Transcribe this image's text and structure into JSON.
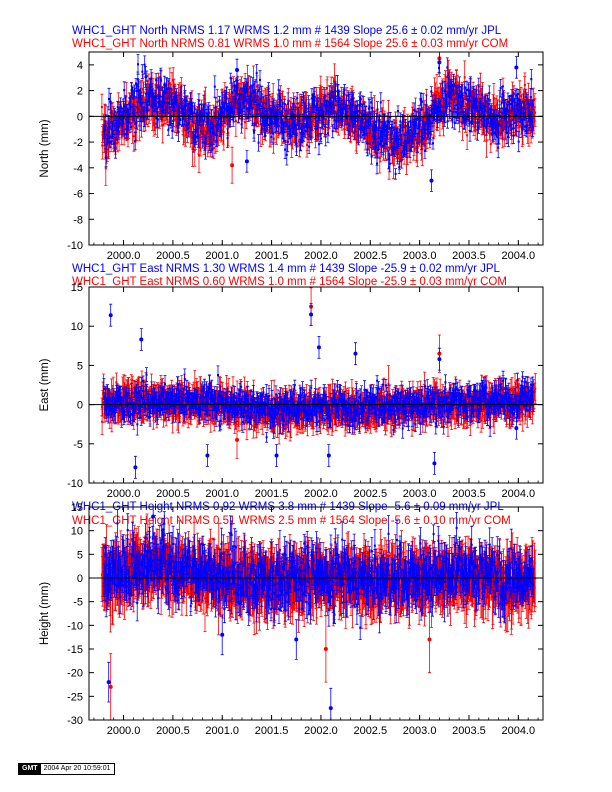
{
  "footer": {
    "logo": "GMT",
    "timestamp": "2004 Apr 20 10:59:01"
  },
  "chart_data": [
    {
      "type": "scatter",
      "titles": [
        "WHC1_GHT North NRMS 1.17 WRMS  1.2 mm # 1439 Slope  25.6 ±  0.02 mm/yr JPL",
        "WHC1_GHT North NRMS 0.81 WRMS  1.0 mm # 1564 Slope  25.6 ±  0.03 mm/yr COM"
      ],
      "ylabel": "North (mm)",
      "xlim": [
        1999.65,
        2004.25
      ],
      "ylim": [
        -10,
        5
      ],
      "xticks": [
        "2000.0",
        "2000.5",
        "2001.0",
        "2001.5",
        "2002.0",
        "2002.5",
        "2003.0",
        "2003.5",
        "2004.0"
      ],
      "yticks": [
        "4",
        "2",
        "0",
        "-2",
        "-4",
        "-6",
        "-8",
        "-10"
      ],
      "grid": false,
      "zero_line": true,
      "series": [
        {
          "name": "JPL",
          "color": "#0000ff",
          "n": 1439,
          "nrms": 1.17,
          "wrms_mm": 1.2,
          "slope_mm_yr": 25.6,
          "slope_sigma": 0.02,
          "start": 1999.8,
          "end": 2004.15,
          "typical_error": 0.6,
          "scatter": 1.2,
          "seasonal_trend": [
            [
              1999.8,
              -1.2
            ],
            [
              2000.0,
              0.0
            ],
            [
              2000.25,
              1.5
            ],
            [
              2000.45,
              1.0
            ],
            [
              2000.7,
              -0.2
            ],
            [
              2000.9,
              -0.8
            ],
            [
              2001.1,
              0.8
            ],
            [
              2001.25,
              1.2
            ],
            [
              2001.45,
              0.2
            ],
            [
              2001.7,
              -0.8
            ],
            [
              2001.9,
              -0.2
            ],
            [
              2002.1,
              0.8
            ],
            [
              2002.3,
              0.4
            ],
            [
              2002.55,
              -1.2
            ],
            [
              2002.85,
              -1.8
            ],
            [
              2003.05,
              -0.6
            ],
            [
              2003.25,
              1.5
            ],
            [
              2003.5,
              1.0
            ],
            [
              2003.75,
              -0.2
            ],
            [
              2004.0,
              0.5
            ],
            [
              2004.15,
              0.2
            ]
          ],
          "outliers": [
            [
              2003.12,
              -5.0
            ],
            [
              2001.15,
              3.6
            ],
            [
              2003.2,
              4.2
            ],
            [
              2003.98,
              3.8
            ],
            [
              2001.25,
              -3.5
            ],
            [
              2002.55,
              -2.4
            ]
          ]
        },
        {
          "name": "COM",
          "color": "#ff0000",
          "n": 1564,
          "nrms": 0.81,
          "wrms_mm": 1.0,
          "slope_mm_yr": 25.6,
          "slope_sigma": 0.03,
          "start": 1999.78,
          "end": 2004.17,
          "typical_error": 1.0,
          "scatter": 1.0,
          "seasonal_trend": [
            [
              1999.8,
              -1.5
            ],
            [
              2000.0,
              -0.5
            ],
            [
              2000.25,
              1.0
            ],
            [
              2000.45,
              0.8
            ],
            [
              2000.7,
              -0.4
            ],
            [
              2000.9,
              -1.0
            ],
            [
              2001.1,
              1.0
            ],
            [
              2001.25,
              1.4
            ],
            [
              2001.45,
              0.3
            ],
            [
              2001.7,
              -0.6
            ],
            [
              2001.9,
              -0.4
            ],
            [
              2002.1,
              0.6
            ],
            [
              2002.3,
              0.2
            ],
            [
              2002.55,
              -1.4
            ],
            [
              2002.85,
              -2.0
            ],
            [
              2003.05,
              -0.8
            ],
            [
              2003.25,
              1.6
            ],
            [
              2003.5,
              0.8
            ],
            [
              2003.75,
              -0.4
            ],
            [
              2004.0,
              0.3
            ],
            [
              2004.15,
              0.0
            ]
          ],
          "outliers": [
            [
              2003.2,
              4.5
            ],
            [
              2001.1,
              -3.8
            ]
          ]
        }
      ]
    },
    {
      "type": "scatter",
      "titles": [
        "WHC1_GHT East NRMS 1.30 WRMS  1.4 mm # 1439 Slope  -25.9 ±  0.02 mm/yr JPL",
        "WHC1_GHT East NRMS 0.60 WRMS  1.0 mm # 1564 Slope  -25.9 ±  0.03 mm/yr COM"
      ],
      "ylabel": "East (mm)",
      "xlim": [
        1999.65,
        2004.25
      ],
      "ylim": [
        -10,
        15
      ],
      "xticks": [
        "2000.0",
        "2000.5",
        "2001.0",
        "2001.5",
        "2002.0",
        "2002.5",
        "2003.0",
        "2003.5",
        "2004.0"
      ],
      "yticks": [
        "15",
        "10",
        "5",
        "0",
        "-5",
        "-10"
      ],
      "grid": false,
      "zero_line": true,
      "series": [
        {
          "name": "JPL",
          "color": "#0000ff",
          "n": 1439,
          "nrms": 1.3,
          "wrms_mm": 1.4,
          "slope_mm_yr": -25.9,
          "slope_sigma": 0.02,
          "start": 1999.8,
          "end": 2004.15,
          "typical_error": 1.0,
          "scatter": 1.3,
          "seasonal_trend": [
            [
              1999.8,
              0.3
            ],
            [
              2000.5,
              0.5
            ],
            [
              2001.0,
              0.3
            ],
            [
              2001.5,
              -0.8
            ],
            [
              2002.0,
              -0.3
            ],
            [
              2002.5,
              -0.4
            ],
            [
              2003.0,
              0.0
            ],
            [
              2003.5,
              0.2
            ],
            [
              2004.0,
              0.5
            ],
            [
              2004.15,
              0.8
            ]
          ],
          "outliers": [
            [
              1999.87,
              11.4
            ],
            [
              2000.18,
              8.3
            ],
            [
              2001.9,
              11.5
            ],
            [
              2001.98,
              7.3
            ],
            [
              2002.35,
              6.5
            ],
            [
              2000.12,
              -8.0
            ],
            [
              2000.85,
              -6.5
            ],
            [
              2001.55,
              -6.5
            ],
            [
              2002.08,
              -6.5
            ],
            [
              2003.15,
              -7.5
            ],
            [
              2003.98,
              -3.0
            ],
            [
              2003.2,
              5.8
            ]
          ]
        },
        {
          "name": "COM",
          "color": "#ff0000",
          "n": 1564,
          "nrms": 0.6,
          "wrms_mm": 1.0,
          "slope_mm_yr": -25.9,
          "slope_sigma": 0.03,
          "start": 1999.78,
          "end": 2004.17,
          "typical_error": 1.7,
          "scatter": 1.0,
          "seasonal_trend": [
            [
              1999.8,
              0.1
            ],
            [
              2000.5,
              0.3
            ],
            [
              2001.0,
              0.0
            ],
            [
              2001.5,
              -1.0
            ],
            [
              2002.0,
              -0.5
            ],
            [
              2002.5,
              -0.6
            ],
            [
              2003.0,
              -0.2
            ],
            [
              2003.5,
              0.0
            ],
            [
              2004.0,
              0.4
            ],
            [
              2004.15,
              0.6
            ]
          ],
          "outliers": [
            [
              2001.9,
              12.5
            ],
            [
              2003.2,
              6.5
            ],
            [
              2001.15,
              -4.5
            ]
          ]
        }
      ]
    },
    {
      "type": "scatter",
      "titles": [
        "WHC1_GHT Height NRMS 0.92 WRMS  3.8 mm # 1439 Slope   -5.6 ±  0.09 mm/yr JPL",
        "WHC1_GHT Height NRMS 0.51 WRMS  2.5 mm # 1564 Slope   -5.6 ±  0.10 mm/yr COM"
      ],
      "ylabel": "Height (mm)",
      "xlim": [
        1999.65,
        2004.25
      ],
      "ylim": [
        -30,
        15
      ],
      "xticks": [
        "2000.0",
        "2000.5",
        "2001.0",
        "2001.5",
        "2002.0",
        "2002.5",
        "2003.0",
        "2003.5",
        "2004.0"
      ],
      "yticks": [
        "15",
        "10",
        "5",
        "0",
        "-5",
        "-10",
        "-15",
        "-20",
        "-25",
        "-30"
      ],
      "grid": false,
      "zero_line": true,
      "series": [
        {
          "name": "JPL",
          "color": "#0000ff",
          "n": 1439,
          "nrms": 0.92,
          "wrms_mm": 3.8,
          "slope_mm_yr": -5.6,
          "slope_sigma": 0.09,
          "start": 1999.8,
          "end": 2004.15,
          "typical_error": 3.0,
          "scatter": 3.8,
          "seasonal_trend": [
            [
              1999.8,
              0.0
            ],
            [
              2000.3,
              3.0
            ],
            [
              2000.6,
              1.5
            ],
            [
              2001.0,
              0.0
            ],
            [
              2001.5,
              -1.0
            ],
            [
              2002.0,
              0.5
            ],
            [
              2002.5,
              -0.5
            ],
            [
              2003.0,
              0.5
            ],
            [
              2003.5,
              0.5
            ],
            [
              2004.0,
              -0.5
            ],
            [
              2004.15,
              0.0
            ]
          ],
          "outliers": [
            [
              2002.1,
              -27.5
            ],
            [
              1999.85,
              -22.0
            ],
            [
              2000.3,
              13.0
            ],
            [
              2001.0,
              -12.0
            ],
            [
              2001.75,
              -13.0
            ]
          ]
        },
        {
          "name": "COM",
          "color": "#ff0000",
          "n": 1564,
          "nrms": 0.51,
          "wrms_mm": 2.5,
          "slope_mm_yr": -5.6,
          "slope_sigma": 0.1,
          "start": 1999.78,
          "end": 2004.17,
          "typical_error": 5.0,
          "scatter": 2.5,
          "seasonal_trend": [
            [
              1999.8,
              0.0
            ],
            [
              2000.3,
              2.0
            ],
            [
              2000.6,
              1.0
            ],
            [
              2001.0,
              0.0
            ],
            [
              2001.5,
              -1.5
            ],
            [
              2002.0,
              0.0
            ],
            [
              2002.5,
              -1.0
            ],
            [
              2003.0,
              0.0
            ],
            [
              2003.5,
              0.0
            ],
            [
              2004.0,
              -1.0
            ],
            [
              2004.15,
              -0.5
            ]
          ],
          "outliers": [
            [
              2002.05,
              -15.0
            ],
            [
              1999.87,
              -23.0
            ],
            [
              2003.1,
              -13.0
            ]
          ]
        }
      ]
    }
  ]
}
